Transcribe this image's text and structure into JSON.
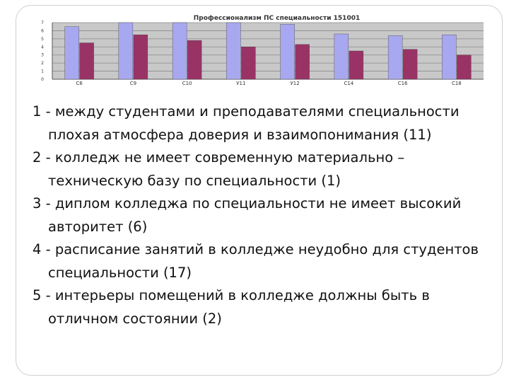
{
  "chart_data": {
    "type": "bar",
    "title": "Профессионализм ПС специальности 151001",
    "categories": [
      "С6",
      "С9",
      "С10",
      "У11",
      "У12",
      "С14",
      "С16",
      "С18"
    ],
    "series": [
      {
        "values": [
          6.5,
          7.0,
          7.0,
          7.0,
          6.8,
          5.6,
          5.4,
          5.5
        ]
      },
      {
        "values": [
          4.5,
          5.5,
          4.8,
          4.0,
          4.3,
          3.5,
          3.7,
          3.0
        ]
      }
    ],
    "ylim": [
      0,
      7
    ],
    "grid": true,
    "colors": [
      "#a8a8f0",
      "#993366"
    ]
  },
  "items": [
    "1 - между студентами и преподавателями специальности плохая атмосфера доверия и взаимопонимания (11)",
    "2 - колледж не имеет современную материально – техническую базу по специальности (1)",
    "3 - диплом колледжа по специальности не имеет высокий авторитет (6)",
    "4 - расписание занятий в колледже неудобно для студентов специальности (17)",
    "5 -  интерьеры помещений в колледже должны быть в отличном состоянии (2)"
  ]
}
